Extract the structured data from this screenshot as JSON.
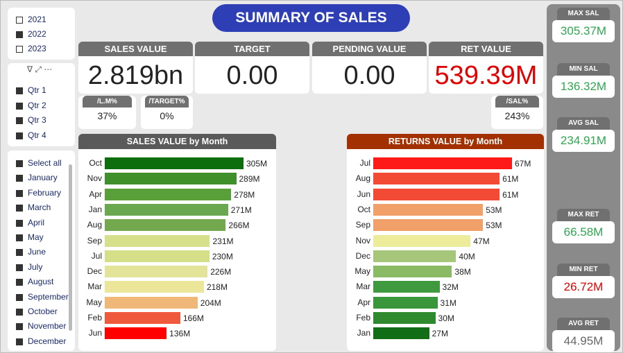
{
  "title": "SUMMARY OF SALES",
  "year_slicer": [
    {
      "label": "2021",
      "checked": false
    },
    {
      "label": "2022",
      "checked": true
    },
    {
      "label": "2023",
      "checked": false
    }
  ],
  "quarter_slicer": [
    {
      "label": "Qtr 1",
      "checked": true
    },
    {
      "label": "Qtr 2",
      "checked": true
    },
    {
      "label": "Qtr 3",
      "checked": true
    },
    {
      "label": "Qtr 4",
      "checked": true
    }
  ],
  "month_slicer": [
    {
      "label": "Select all",
      "checked": true
    },
    {
      "label": "January",
      "checked": true
    },
    {
      "label": "February",
      "checked": true
    },
    {
      "label": "March",
      "checked": true
    },
    {
      "label": "April",
      "checked": true
    },
    {
      "label": "May",
      "checked": true
    },
    {
      "label": "June",
      "checked": true
    },
    {
      "label": "July",
      "checked": true
    },
    {
      "label": "August",
      "checked": true
    },
    {
      "label": "September",
      "checked": true
    },
    {
      "label": "October",
      "checked": true
    },
    {
      "label": "November",
      "checked": true
    },
    {
      "label": "December",
      "checked": true
    }
  ],
  "kpis": [
    {
      "label": "SALES VALUE",
      "value": "2.819bn",
      "color": "#222222"
    },
    {
      "label": "TARGET",
      "value": "0.00",
      "color": "#222222"
    },
    {
      "label": "PENDING VALUE",
      "value": "0.00",
      "color": "#222222"
    },
    {
      "label": "RET VALUE",
      "value": "539.39M",
      "color": "#e00000"
    }
  ],
  "small_kpis": [
    {
      "label": "/L.M%",
      "value": "37%"
    },
    {
      "label": "/TARGET%",
      "value": "0%"
    },
    {
      "label": "/SAL%",
      "value": "243%"
    }
  ],
  "side_kpis": [
    {
      "label": "MAX SAL",
      "value": "305.37M",
      "color": "#2ea64f"
    },
    {
      "label": "MIN SAL",
      "value": "136.32M",
      "color": "#2ea64f"
    },
    {
      "label": "AVG SAL",
      "value": "234.91M",
      "color": "#2ea64f"
    },
    {
      "label": "MAX RET",
      "value": "66.58M",
      "color": "#2ea64f"
    },
    {
      "label": "MIN RET",
      "value": "26.72M",
      "color": "#e00000"
    },
    {
      "label": "AVG RET",
      "value": "44.95M",
      "color": "#666666"
    }
  ],
  "chart_data": [
    {
      "type": "bar",
      "orientation": "horizontal",
      "title": "SALES VALUE by Month",
      "header_color": "#5a5a5a",
      "categories": [
        "Oct",
        "Nov",
        "Apr",
        "Jan",
        "Aug",
        "Sep",
        "Jul",
        "Dec",
        "Mar",
        "May",
        "Feb",
        "Jun"
      ],
      "values": [
        305,
        289,
        278,
        271,
        266,
        231,
        230,
        226,
        218,
        204,
        166,
        136
      ],
      "value_labels": [
        "305M",
        "289M",
        "278M",
        "271M",
        "266M",
        "231M",
        "230M",
        "226M",
        "218M",
        "204M",
        "166M",
        "136M"
      ],
      "colors": [
        "#0d6e0d",
        "#3f8f2a",
        "#5aa03a",
        "#6aa84f",
        "#74a84f",
        "#d6e08a",
        "#d4df88",
        "#e3e49a",
        "#ece69a",
        "#f0b878",
        "#f05a3c",
        "#ff0000"
      ]
    },
    {
      "type": "bar",
      "orientation": "horizontal",
      "title": "RETURNS VALUE by Month",
      "header_color": "#a33000",
      "categories": [
        "Jul",
        "Aug",
        "Jun",
        "Oct",
        "Sep",
        "Nov",
        "Dec",
        "May",
        "Mar",
        "Apr",
        "Feb",
        "Jan"
      ],
      "values": [
        67,
        61,
        61,
        53,
        53,
        47,
        40,
        38,
        32,
        31,
        30,
        27
      ],
      "value_labels": [
        "67M",
        "61M",
        "61M",
        "53M",
        "53M",
        "47M",
        "40M",
        "38M",
        "32M",
        "31M",
        "30M",
        "27M"
      ],
      "colors": [
        "#ff1a1a",
        "#f24a35",
        "#f24a35",
        "#f2a06a",
        "#f2a06a",
        "#ecec9a",
        "#a6c77a",
        "#8aba64",
        "#3f9a3f",
        "#3a963a",
        "#2f8a2f",
        "#116e16"
      ]
    }
  ]
}
